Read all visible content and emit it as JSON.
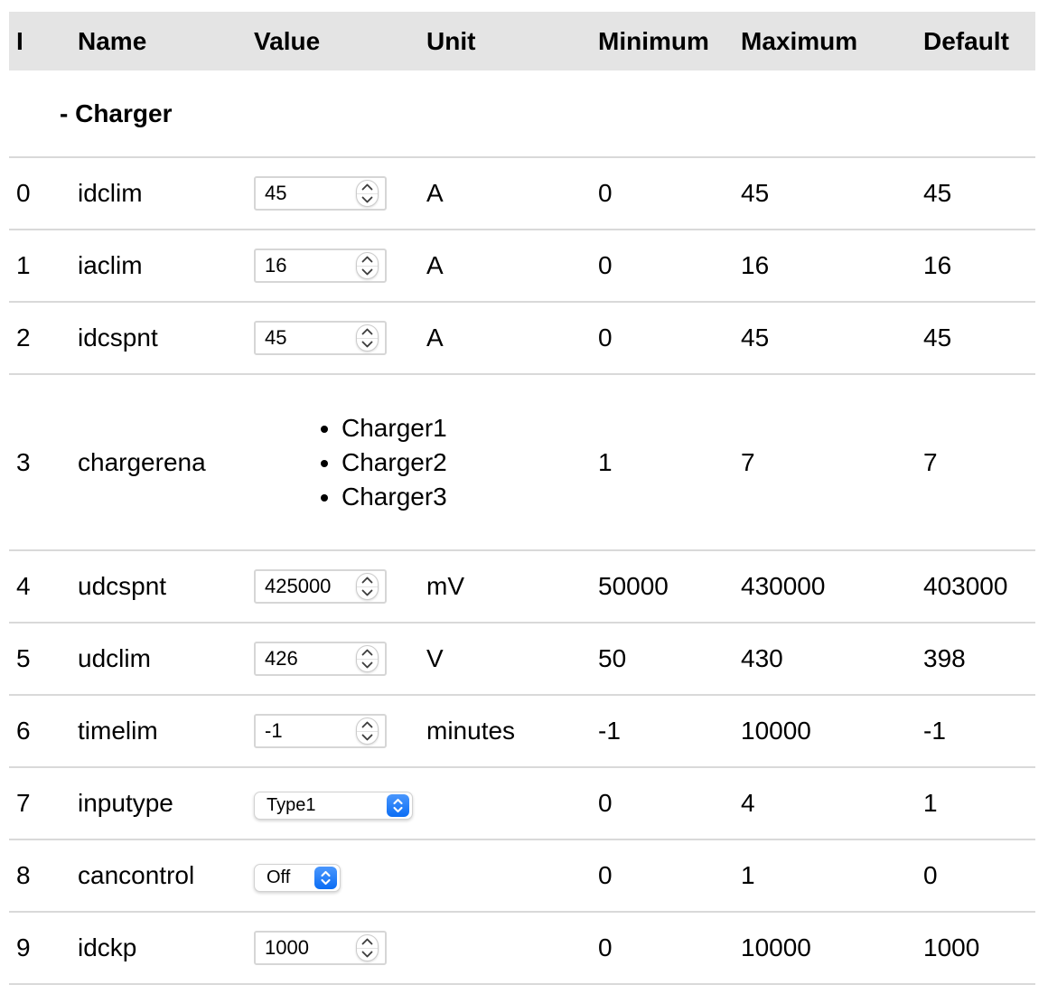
{
  "table": {
    "columns": [
      "I",
      "Name",
      "Value",
      "Unit",
      "Minimum",
      "Maximum",
      "Default"
    ],
    "group_label": "- Charger",
    "rows": [
      {
        "index": "0",
        "name": "idclim",
        "value_type": "number",
        "value": "45",
        "unit": "A",
        "min": "0",
        "max": "45",
        "default": "45"
      },
      {
        "index": "1",
        "name": "iaclim",
        "value_type": "number",
        "value": "16",
        "unit": "A",
        "min": "0",
        "max": "16",
        "default": "16"
      },
      {
        "index": "2",
        "name": "idcspnt",
        "value_type": "number",
        "value": "45",
        "unit": "A",
        "min": "0",
        "max": "45",
        "default": "45"
      },
      {
        "index": "3",
        "name": "chargerena",
        "value_type": "list",
        "items": [
          "Charger1",
          "Charger2",
          "Charger3"
        ],
        "unit": "",
        "min": "1",
        "max": "7",
        "default": "7"
      },
      {
        "index": "4",
        "name": "udcspnt",
        "value_type": "number",
        "value": "425000",
        "unit": "mV",
        "min": "50000",
        "max": "430000",
        "default": "403000"
      },
      {
        "index": "5",
        "name": "udclim",
        "value_type": "number",
        "value": "426",
        "unit": "V",
        "min": "50",
        "max": "430",
        "default": "398"
      },
      {
        "index": "6",
        "name": "timelim",
        "value_type": "number",
        "value": "-1",
        "unit": "minutes",
        "min": "-1",
        "max": "10000",
        "default": "-1"
      },
      {
        "index": "7",
        "name": "inputype",
        "value_type": "select",
        "value": "Type1",
        "unit": "",
        "min": "0",
        "max": "4",
        "default": "1"
      },
      {
        "index": "8",
        "name": "cancontrol",
        "value_type": "select",
        "value": "Off",
        "unit": "",
        "min": "0",
        "max": "1",
        "default": "0"
      },
      {
        "index": "9",
        "name": "idckp",
        "value_type": "number",
        "value": "1000",
        "unit": "",
        "min": "0",
        "max": "10000",
        "default": "1000"
      }
    ],
    "colors": {
      "header_bg": "#e4e4e4",
      "row_border": "#d9d9d9",
      "select_accent": "#0b6df4"
    },
    "icons": {
      "stepper_up": "chevron-up-icon",
      "stepper_down": "chevron-down-icon",
      "select_button": "up-down-chevrons-icon"
    }
  }
}
